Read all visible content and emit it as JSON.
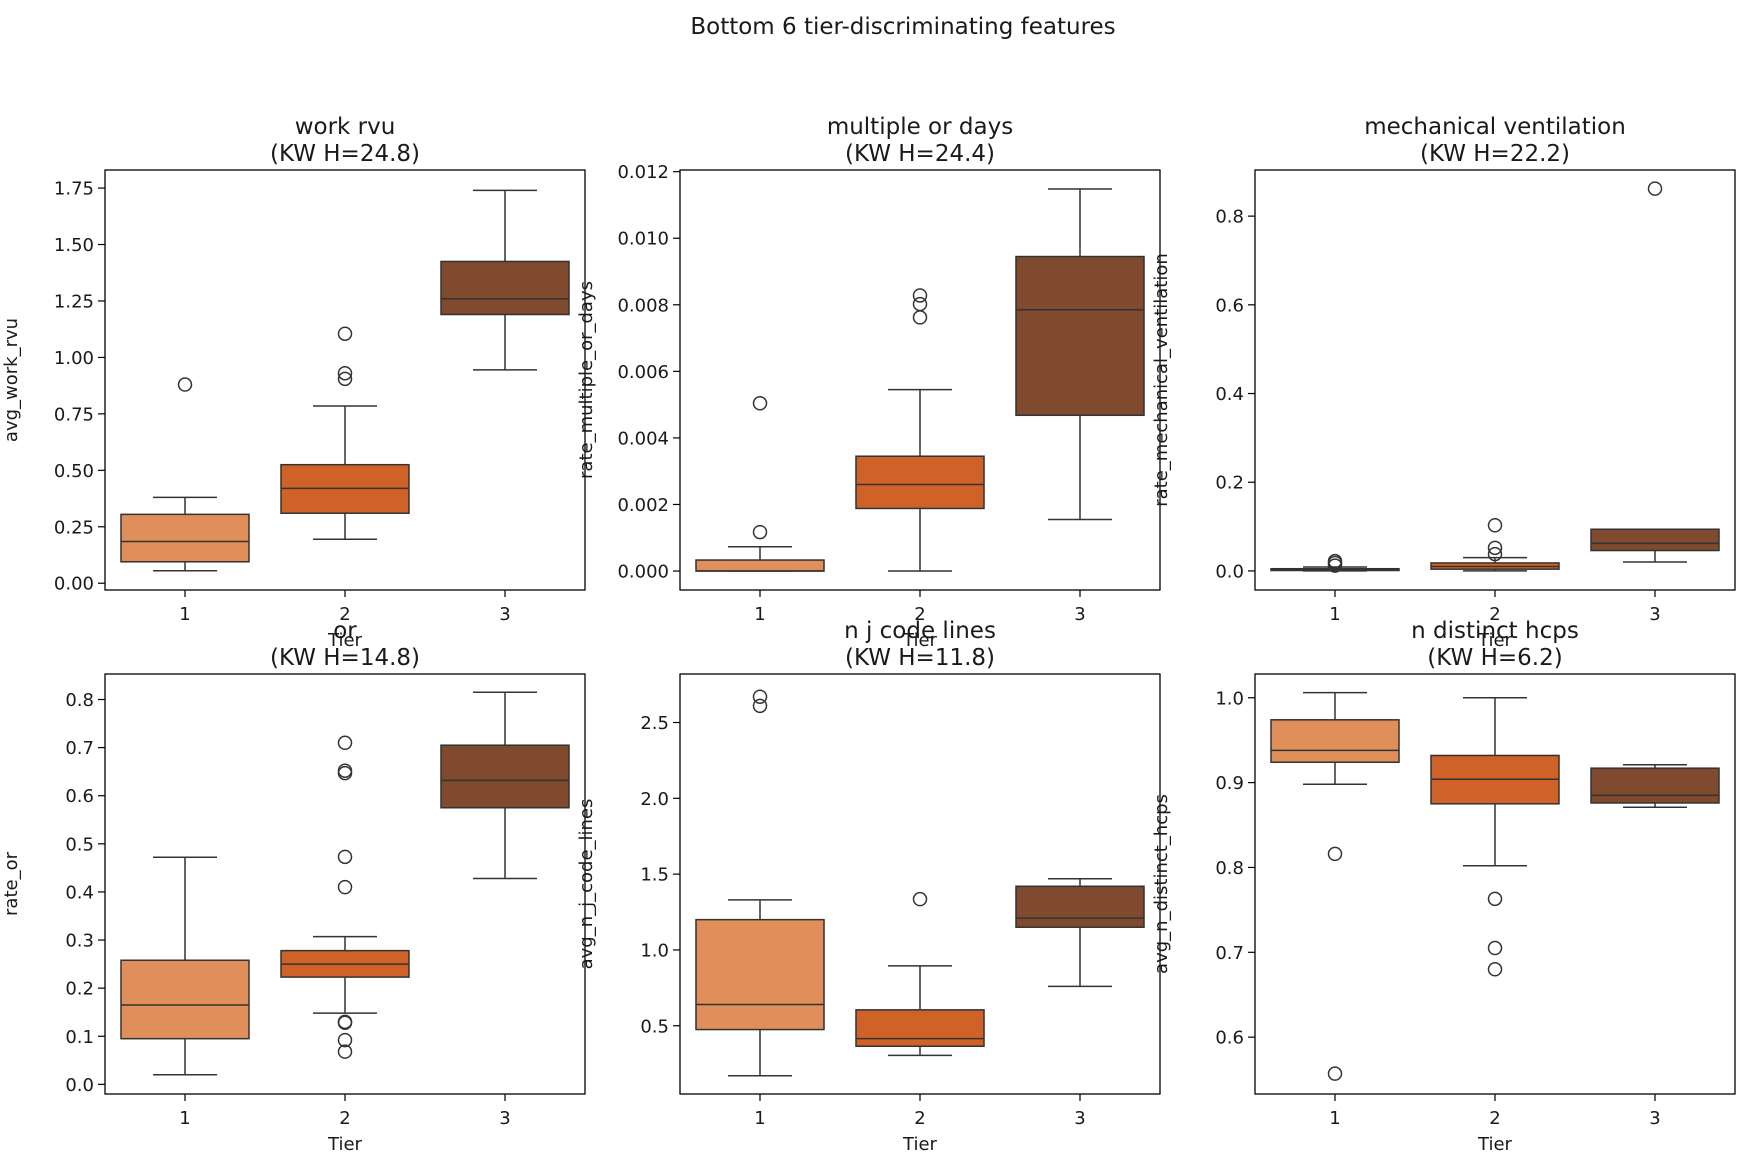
{
  "suptitle": "Bottom 6 tier-discriminating features",
  "colors": {
    "tier1": "#E08F5A",
    "tier2": "#CF6327",
    "tier3": "#7F4A2D",
    "edge": "#333333"
  },
  "chart_data": [
    {
      "type": "box",
      "title_line1": "work rvu",
      "title_line2": "(KW H=24.8)",
      "xlabel": "Tier",
      "ylabel": "avg_work_rvu",
      "categories": [
        "1",
        "2",
        "3"
      ],
      "ylim": [
        -0.03,
        1.83
      ],
      "yticks": [
        0.0,
        0.25,
        0.5,
        0.75,
        1.0,
        1.25,
        1.5,
        1.75
      ],
      "ytick_labels": [
        "0.00",
        "0.25",
        "0.50",
        "0.75",
        "1.00",
        "1.25",
        "1.50",
        "1.75"
      ],
      "boxes": [
        {
          "tier": "1",
          "whislo": 0.055,
          "q1": 0.095,
          "med": 0.185,
          "q3": 0.305,
          "whishi": 0.38,
          "fliers": [
            0.88
          ]
        },
        {
          "tier": "2",
          "whislo": 0.195,
          "q1": 0.31,
          "med": 0.42,
          "q3": 0.525,
          "whishi": 0.785,
          "fliers": [
            0.905,
            0.93,
            1.105
          ]
        },
        {
          "tier": "3",
          "whislo": 0.945,
          "q1": 1.19,
          "med": 1.26,
          "q3": 1.425,
          "whishi": 1.74,
          "fliers": []
        }
      ]
    },
    {
      "type": "box",
      "title_line1": "multiple or days",
      "title_line2": "(KW H=24.4)",
      "xlabel": "Tier",
      "ylabel": "rate_multiple_or_days",
      "categories": [
        "1",
        "2",
        "3"
      ],
      "ylim": [
        -0.00057,
        0.01205
      ],
      "yticks": [
        0.0,
        0.002,
        0.004,
        0.006,
        0.008,
        0.01,
        0.012
      ],
      "ytick_labels": [
        "0.000",
        "0.002",
        "0.004",
        "0.006",
        "0.008",
        "0.010",
        "0.012"
      ],
      "boxes": [
        {
          "tier": "1",
          "whislo": 0.0,
          "q1": 0.0,
          "med": 0.0,
          "q3": 0.00033,
          "whishi": 0.00073,
          "fliers": [
            0.00117,
            0.00504
          ]
        },
        {
          "tier": "2",
          "whislo": 0.0,
          "q1": 0.00188,
          "med": 0.0026,
          "q3": 0.00345,
          "whishi": 0.00545,
          "fliers": [
            0.00762,
            0.00802,
            0.00828
          ]
        },
        {
          "tier": "3",
          "whislo": 0.00155,
          "q1": 0.00468,
          "med": 0.00785,
          "q3": 0.00945,
          "whishi": 0.01148,
          "fliers": []
        }
      ]
    },
    {
      "type": "box",
      "title_line1": "mechanical ventilation",
      "title_line2": "(KW H=22.2)",
      "xlabel": "Tier",
      "ylabel": "rate_mechanical_ventilation",
      "categories": [
        "1",
        "2",
        "3"
      ],
      "ylim": [
        -0.043,
        0.904
      ],
      "yticks": [
        0.0,
        0.2,
        0.4,
        0.6,
        0.8
      ],
      "ytick_labels": [
        "0.0",
        "0.2",
        "0.4",
        "0.6",
        "0.8"
      ],
      "boxes": [
        {
          "tier": "1",
          "whislo": 0.0,
          "q1": 0.001,
          "med": 0.003,
          "q3": 0.005,
          "whishi": 0.009,
          "fliers": [
            0.012,
            0.018,
            0.022
          ]
        },
        {
          "tier": "2",
          "whislo": 0.0,
          "q1": 0.004,
          "med": 0.01,
          "q3": 0.018,
          "whishi": 0.03,
          "fliers": [
            0.038,
            0.052,
            0.103
          ]
        },
        {
          "tier": "3",
          "whislo": 0.02,
          "q1": 0.046,
          "med": 0.062,
          "q3": 0.094,
          "whishi": 0.094,
          "fliers": [
            0.862
          ]
        }
      ]
    },
    {
      "type": "box",
      "title_line1": "or",
      "title_line2": "(KW H=14.8)",
      "xlabel": "Tier",
      "ylabel": "rate_or",
      "categories": [
        "1",
        "2",
        "3"
      ],
      "ylim": [
        -0.02,
        0.853
      ],
      "yticks": [
        0.0,
        0.1,
        0.2,
        0.3,
        0.4,
        0.5,
        0.6,
        0.7,
        0.8
      ],
      "ytick_labels": [
        "0.0",
        "0.1",
        "0.2",
        "0.3",
        "0.4",
        "0.5",
        "0.6",
        "0.7",
        "0.8"
      ],
      "boxes": [
        {
          "tier": "1",
          "whislo": 0.02,
          "q1": 0.095,
          "med": 0.165,
          "q3": 0.258,
          "whishi": 0.472,
          "fliers": []
        },
        {
          "tier": "2",
          "whislo": 0.148,
          "q1": 0.223,
          "med": 0.25,
          "q3": 0.278,
          "whishi": 0.307,
          "fliers": [
            0.068,
            0.092,
            0.128,
            0.13,
            0.41,
            0.473,
            0.647,
            0.652,
            0.71
          ]
        },
        {
          "tier": "3",
          "whislo": 0.428,
          "q1": 0.575,
          "med": 0.632,
          "q3": 0.705,
          "whishi": 0.815,
          "fliers": []
        }
      ]
    },
    {
      "type": "box",
      "title_line1": "n j code lines",
      "title_line2": "(KW H=11.8)",
      "xlabel": "Tier",
      "ylabel": "avg_n_j_code_lines",
      "categories": [
        "1",
        "2",
        "3"
      ],
      "ylim": [
        0.05,
        2.82
      ],
      "yticks": [
        0.5,
        1.0,
        1.5,
        2.0,
        2.5
      ],
      "ytick_labels": [
        "0.5",
        "1.0",
        "1.5",
        "2.0",
        "2.5"
      ],
      "boxes": [
        {
          "tier": "1",
          "whislo": 0.17,
          "q1": 0.475,
          "med": 0.64,
          "q3": 1.2,
          "whishi": 1.33,
          "fliers": [
            2.61,
            2.67
          ]
        },
        {
          "tier": "2",
          "whislo": 0.305,
          "q1": 0.365,
          "med": 0.415,
          "q3": 0.605,
          "whishi": 0.895,
          "fliers": [
            1.335
          ]
        },
        {
          "tier": "3",
          "whislo": 0.76,
          "q1": 1.15,
          "med": 1.21,
          "q3": 1.42,
          "whishi": 1.47,
          "fliers": []
        }
      ]
    },
    {
      "type": "box",
      "title_line1": "n distinct hcps",
      "title_line2": "(KW H=6.2)",
      "xlabel": "Tier",
      "ylabel": "avg_n_distinct_hcps",
      "categories": [
        "1",
        "2",
        "3"
      ],
      "ylim": [
        0.533,
        1.028
      ],
      "yticks": [
        0.6,
        0.7,
        0.8,
        0.9,
        1.0
      ],
      "ytick_labels": [
        "0.6",
        "0.7",
        "0.8",
        "0.9",
        "1.0"
      ],
      "boxes": [
        {
          "tier": "1",
          "whislo": 0.898,
          "q1": 0.924,
          "med": 0.938,
          "q3": 0.974,
          "whishi": 1.006,
          "fliers": [
            0.557,
            0.816
          ]
        },
        {
          "tier": "2",
          "whislo": 0.802,
          "q1": 0.875,
          "med": 0.904,
          "q3": 0.932,
          "whishi": 1.0,
          "fliers": [
            0.68,
            0.705,
            0.763
          ]
        },
        {
          "tier": "3",
          "whislo": 0.871,
          "q1": 0.876,
          "med": 0.885,
          "q3": 0.917,
          "whishi": 0.921,
          "fliers": []
        }
      ]
    }
  ]
}
